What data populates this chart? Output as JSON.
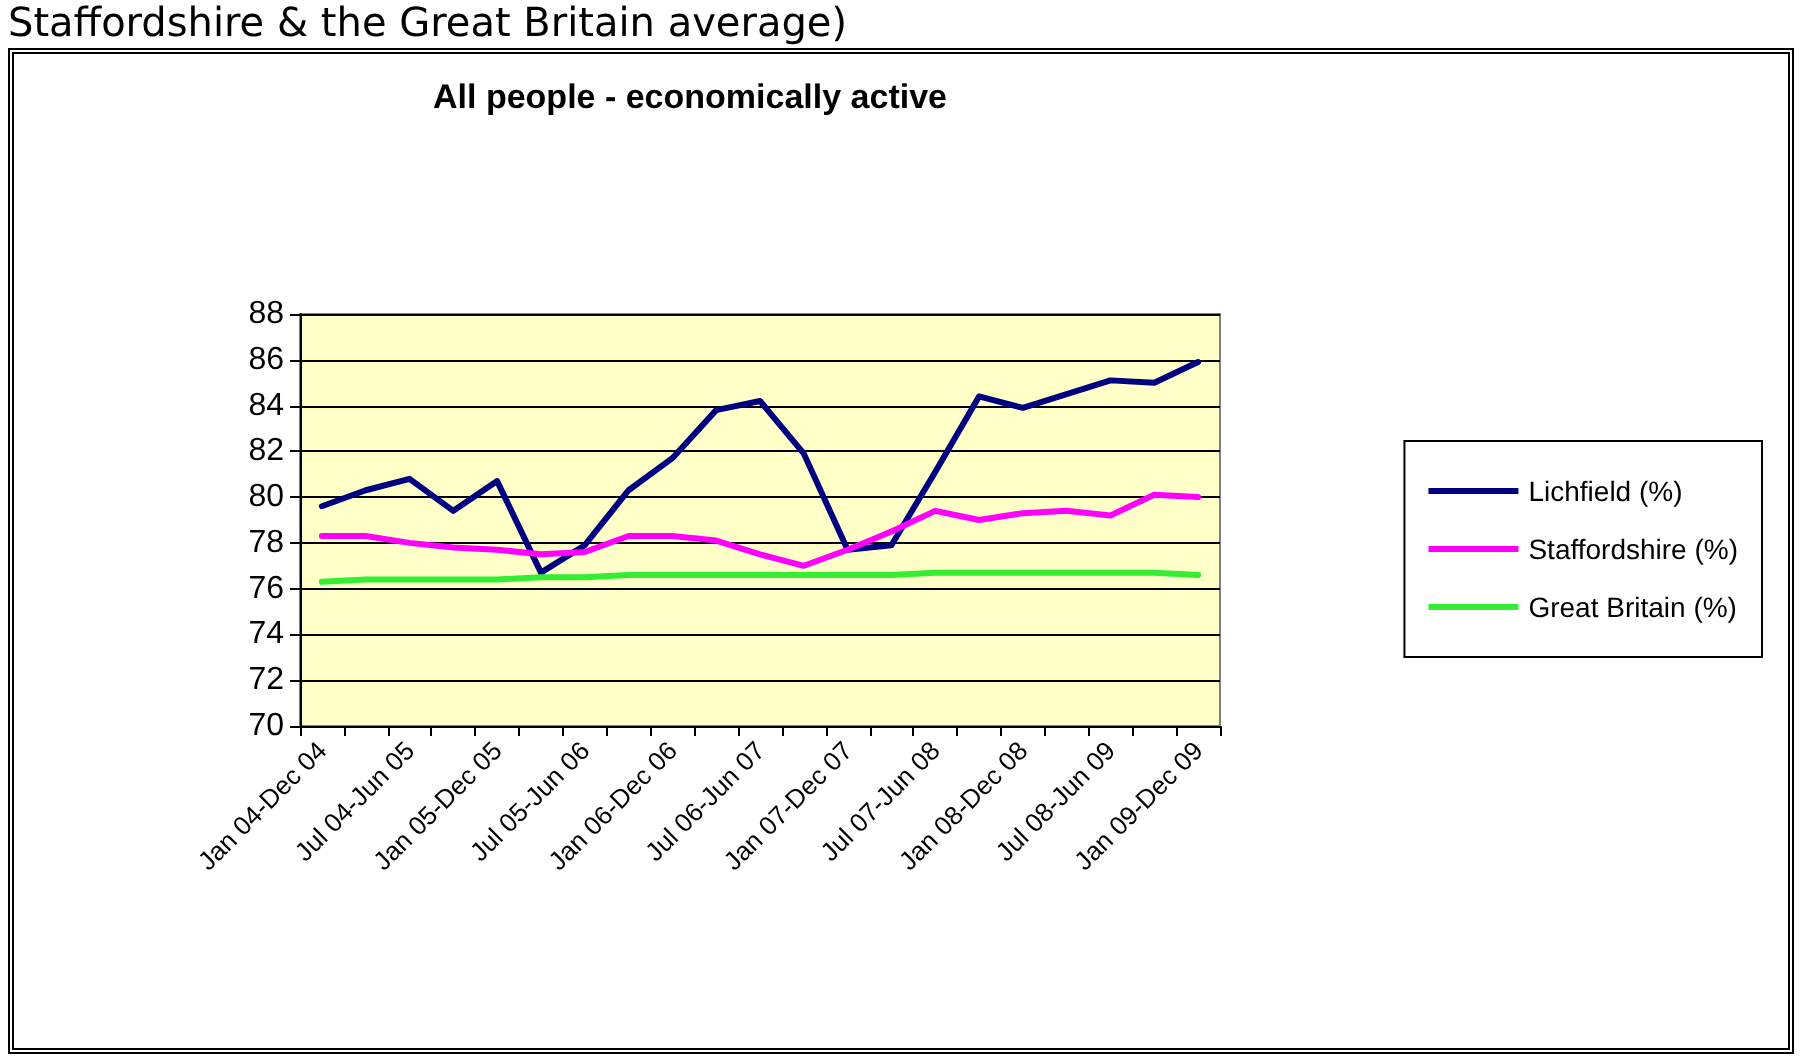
{
  "chart_data": {
    "type": "line",
    "title": "All people - economically active",
    "annotations": [
      "Staffordshire & the Great Britain average)"
    ],
    "categories": [
      "Jan 04-Dec 04",
      null,
      "Jul 04-Jun 05",
      null,
      "Jan 05-Dec 05",
      null,
      "Jul 05-Jun 06",
      null,
      "Jan 06-Dec 06",
      null,
      "Jul 06-Jun 07",
      null,
      "Jan 07-Dec 07",
      null,
      "Jul 07-Jun 08",
      null,
      "Jan 08-Dec 08",
      null,
      "Jul 08-Jun 09",
      null,
      "Jan 09-Dec 09"
    ],
    "series": [
      {
        "name": "Lichfield (%)",
        "color": "#000080",
        "values": [
          79.6,
          80.3,
          80.8,
          79.4,
          80.7,
          76.7,
          77.9,
          80.3,
          81.7,
          83.8,
          84.2,
          81.9,
          77.7,
          77.9,
          81.1,
          84.4,
          83.9,
          84.5,
          85.1,
          85.0,
          85.9
        ]
      },
      {
        "name": "Staffordshire (%)",
        "color": "#ff00ff",
        "values": [
          78.3,
          78.3,
          78.0,
          77.8,
          77.7,
          77.5,
          77.6,
          78.3,
          78.3,
          78.1,
          77.5,
          77.0,
          77.7,
          78.5,
          79.4,
          79.0,
          79.3,
          79.4,
          79.2,
          80.1,
          80.0
        ]
      },
      {
        "name": "Great Britain (%)",
        "color": "#33ee33",
        "values": [
          76.3,
          76.4,
          76.4,
          76.4,
          76.4,
          76.5,
          76.5,
          76.6,
          76.6,
          76.6,
          76.6,
          76.6,
          76.6,
          76.6,
          76.7,
          76.7,
          76.7,
          76.7,
          76.7,
          76.7,
          76.6
        ]
      }
    ],
    "ylim": [
      70,
      88
    ],
    "yticks": [
      70,
      72,
      74,
      76,
      78,
      80,
      82,
      84,
      86,
      88
    ],
    "grid": "y",
    "legend": "right",
    "marker": "none",
    "line_style": "solid"
  }
}
